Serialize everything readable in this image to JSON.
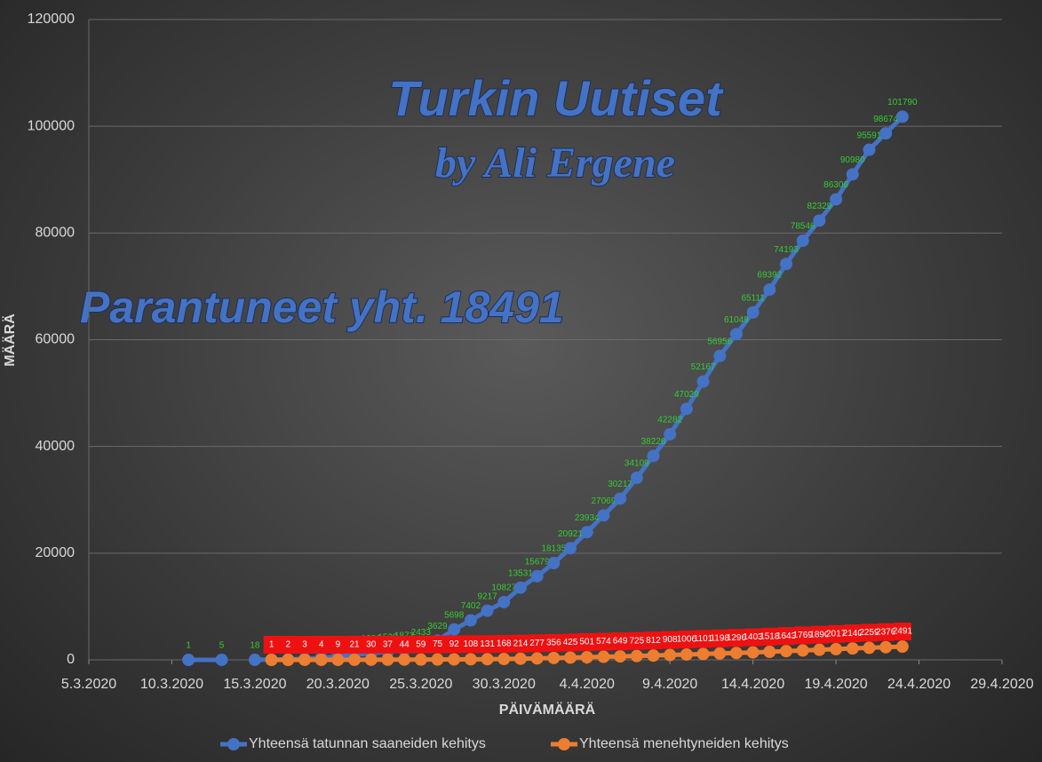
{
  "chart_data": {
    "type": "line",
    "title": "Turkin Uutiset",
    "subtitle": "by Ali Ergene",
    "annotations": [
      "Parantuneet yht. 18491"
    ],
    "x_label": "PÄIVÄMÄÄRÄ",
    "y_label": "MÄÄRÄ",
    "xlim": [
      "5.3.2020",
      "29.4.2020"
    ],
    "xticks": [
      "5.3.2020",
      "10.3.2020",
      "15.3.2020",
      "20.3.2020",
      "25.3.2020",
      "30.3.2020",
      "4.4.2020",
      "9.4.2020",
      "14.4.2020",
      "19.4.2020",
      "24.4.2020",
      "29.4.2020"
    ],
    "ylim": [
      0,
      120000
    ],
    "yticks": [
      0,
      20000,
      40000,
      60000,
      80000,
      100000,
      120000
    ],
    "grid": true,
    "legend": "bottom",
    "series": [
      {
        "name": "Yhteensä tatunnan saaneiden kehitys",
        "color": "#4472c4",
        "x": [
          "11.3.2020",
          "13.3.2020",
          "14.3.2020",
          "15.3.2020",
          "16.3.2020",
          "17.3.2020",
          "18.3.2020",
          "19.3.2020",
          "20.3.2020",
          "21.3.2020",
          "22.3.2020",
          "23.3.2020",
          "24.3.2020",
          "25.3.2020",
          "26.3.2020",
          "27.3.2020",
          "28.3.2020",
          "29.3.2020",
          "30.3.2020",
          "31.3.2020",
          "1.4.2020",
          "2.4.2020",
          "3.4.2020",
          "4.4.2020",
          "5.4.2020",
          "6.4.2020",
          "7.4.2020",
          "8.4.2020",
          "9.4.2020",
          "10.4.2020",
          "11.4.2020",
          "12.4.2020",
          "13.4.2020",
          "14.4.2020",
          "15.4.2020",
          "16.4.2020",
          "17.4.2020",
          "18.4.2020",
          "19.4.2020",
          "20.4.2020",
          "21.4.2020",
          "22.4.2020",
          "23.4.2020"
        ],
        "values": [
          1,
          5,
          null,
          18,
          47,
          98,
          191,
          359,
          670,
          947,
          1236,
          1529,
          1872,
          2433,
          3629,
          5698,
          7402,
          9217,
          10827,
          13531,
          15679,
          18135,
          20921,
          23934,
          27069,
          30217,
          34109,
          38226,
          42282,
          47029,
          52167,
          56956,
          61049,
          65111,
          69392,
          74193,
          78546,
          82329,
          86306,
          90980,
          95591,
          98674,
          101790
        ]
      },
      {
        "name": "Yhteensä menehtyneiden kehitys",
        "color": "#ed7d31",
        "x": [
          "16.3.2020",
          "17.3.2020",
          "18.3.2020",
          "19.3.2020",
          "20.3.2020",
          "21.3.2020",
          "22.3.2020",
          "23.3.2020",
          "24.3.2020",
          "25.3.2020",
          "26.3.2020",
          "27.3.2020",
          "28.3.2020",
          "29.3.2020",
          "30.3.2020",
          "31.3.2020",
          "1.4.2020",
          "2.4.2020",
          "3.4.2020",
          "4.4.2020",
          "5.4.2020",
          "6.4.2020",
          "7.4.2020",
          "8.4.2020",
          "9.4.2020",
          "10.4.2020",
          "11.4.2020",
          "12.4.2020",
          "13.4.2020",
          "14.4.2020",
          "15.4.2020",
          "16.4.2020",
          "17.4.2020",
          "18.4.2020",
          "19.4.2020",
          "20.4.2020",
          "21.4.2020",
          "22.4.2020",
          "23.4.2020"
        ],
        "values": [
          1,
          2,
          3,
          4,
          9,
          21,
          30,
          37,
          44,
          59,
          75,
          92,
          108,
          131,
          168,
          214,
          277,
          356,
          425,
          501,
          574,
          649,
          725,
          812,
          908,
          1006,
          1101,
          1198,
          1296,
          1403,
          1518,
          1643,
          1769,
          1890,
          2017,
          2140,
          2259,
          2376,
          2491
        ]
      }
    ]
  }
}
